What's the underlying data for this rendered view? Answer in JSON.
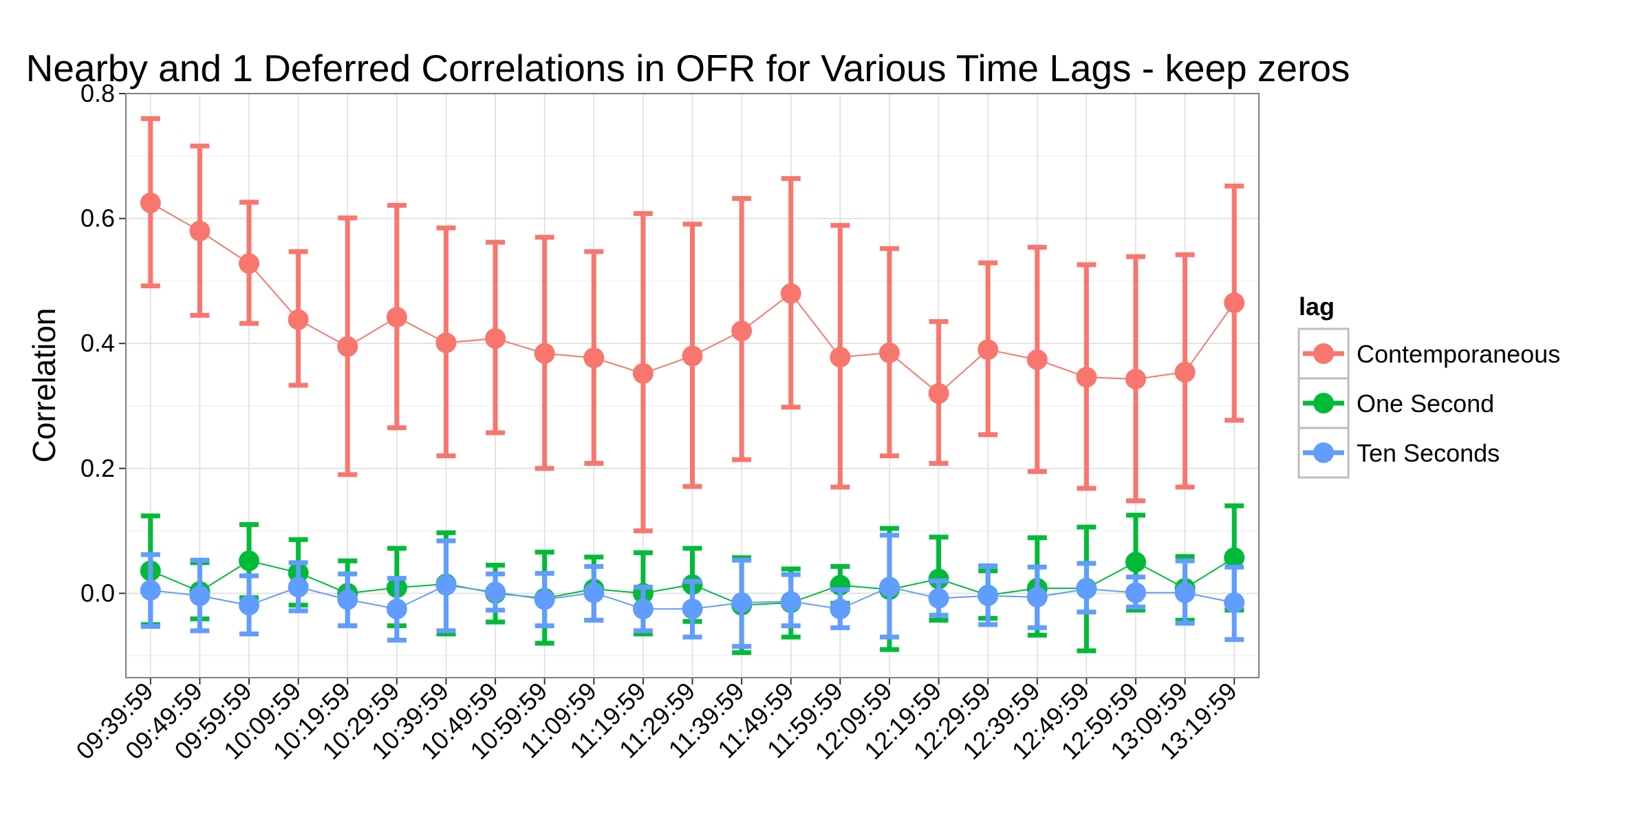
{
  "chart_data": {
    "type": "line",
    "title": "Nearby and 1 Deferred Correlations in OFR for Various Time Lags - keep zeros",
    "xlabel": "",
    "ylabel": "Correlation",
    "ylim": [
      -0.135,
      0.8
    ],
    "yticks": [
      "0.0",
      "0.2",
      "0.4",
      "0.6",
      "0.8"
    ],
    "grid": true,
    "legend_title": "lag",
    "legend_position": "right",
    "categories": [
      "09:39:59",
      "09:49:59",
      "09:59:59",
      "10:09:59",
      "10:19:59",
      "10:29:59",
      "10:39:59",
      "10:49:59",
      "10:59:59",
      "11:09:59",
      "11:19:59",
      "11:29:59",
      "11:39:59",
      "11:49:59",
      "11:59:59",
      "12:09:59",
      "12:19:59",
      "12:29:59",
      "12:39:59",
      "12:49:59",
      "12:59:59",
      "13:09:59",
      "13:19:59"
    ],
    "series": [
      {
        "name": "Contemporaneous",
        "color": "#F8766D",
        "values": [
          0.625,
          0.58,
          0.528,
          0.438,
          0.395,
          0.442,
          0.401,
          0.408,
          0.384,
          0.377,
          0.352,
          0.38,
          0.42,
          0.48,
          0.378,
          0.385,
          0.32,
          0.39,
          0.374,
          0.346,
          0.343,
          0.354,
          0.465
        ],
        "lower": [
          0.492,
          0.445,
          0.432,
          0.333,
          0.19,
          0.265,
          0.22,
          0.257,
          0.2,
          0.208,
          0.1,
          0.171,
          0.214,
          0.298,
          0.17,
          0.22,
          0.208,
          0.254,
          0.195,
          0.168,
          0.148,
          0.17,
          0.277
        ],
        "upper": [
          0.76,
          0.716,
          0.626,
          0.547,
          0.601,
          0.621,
          0.585,
          0.562,
          0.57,
          0.547,
          0.608,
          0.591,
          0.632,
          0.664,
          0.589,
          0.552,
          0.435,
          0.529,
          0.554,
          0.526,
          0.539,
          0.542,
          0.652
        ]
      },
      {
        "name": "One Second",
        "color": "#00BA38",
        "values": [
          0.036,
          0.003,
          0.052,
          0.033,
          0.0,
          0.009,
          0.015,
          0.0,
          -0.008,
          0.007,
          0.0,
          0.014,
          -0.019,
          -0.015,
          0.013,
          0.006,
          0.023,
          -0.003,
          0.008,
          0.008,
          0.05,
          0.008,
          0.057
        ],
        "lower": [
          -0.05,
          -0.041,
          -0.007,
          -0.019,
          -0.052,
          -0.052,
          -0.065,
          -0.046,
          -0.08,
          -0.043,
          -0.065,
          -0.045,
          -0.095,
          -0.07,
          -0.016,
          -0.09,
          -0.043,
          -0.04,
          -0.067,
          -0.092,
          -0.027,
          -0.043,
          -0.027
        ],
        "upper": [
          0.124,
          0.049,
          0.11,
          0.086,
          0.052,
          0.072,
          0.097,
          0.045,
          0.066,
          0.058,
          0.065,
          0.072,
          0.057,
          0.039,
          0.043,
          0.104,
          0.09,
          0.036,
          0.089,
          0.106,
          0.125,
          0.059,
          0.14
        ]
      },
      {
        "name": "Ten Seconds",
        "color": "#619CFF",
        "values": [
          0.005,
          -0.004,
          -0.019,
          0.01,
          -0.01,
          -0.025,
          0.013,
          0.002,
          -0.01,
          0.001,
          -0.025,
          -0.025,
          -0.015,
          -0.013,
          -0.025,
          0.01,
          -0.008,
          -0.004,
          -0.006,
          0.007,
          0.001,
          0.001,
          -0.015
        ],
        "lower": [
          -0.053,
          -0.06,
          -0.065,
          -0.028,
          -0.052,
          -0.075,
          -0.06,
          -0.027,
          -0.052,
          -0.043,
          -0.06,
          -0.07,
          -0.085,
          -0.052,
          -0.055,
          -0.07,
          -0.035,
          -0.05,
          -0.055,
          -0.03,
          -0.022,
          -0.048,
          -0.074
        ],
        "upper": [
          0.062,
          0.053,
          0.028,
          0.049,
          0.031,
          0.024,
          0.084,
          0.031,
          0.032,
          0.043,
          0.01,
          0.019,
          0.053,
          0.03,
          0.006,
          0.093,
          0.02,
          0.044,
          0.042,
          0.048,
          0.026,
          0.052,
          0.042
        ]
      }
    ]
  }
}
